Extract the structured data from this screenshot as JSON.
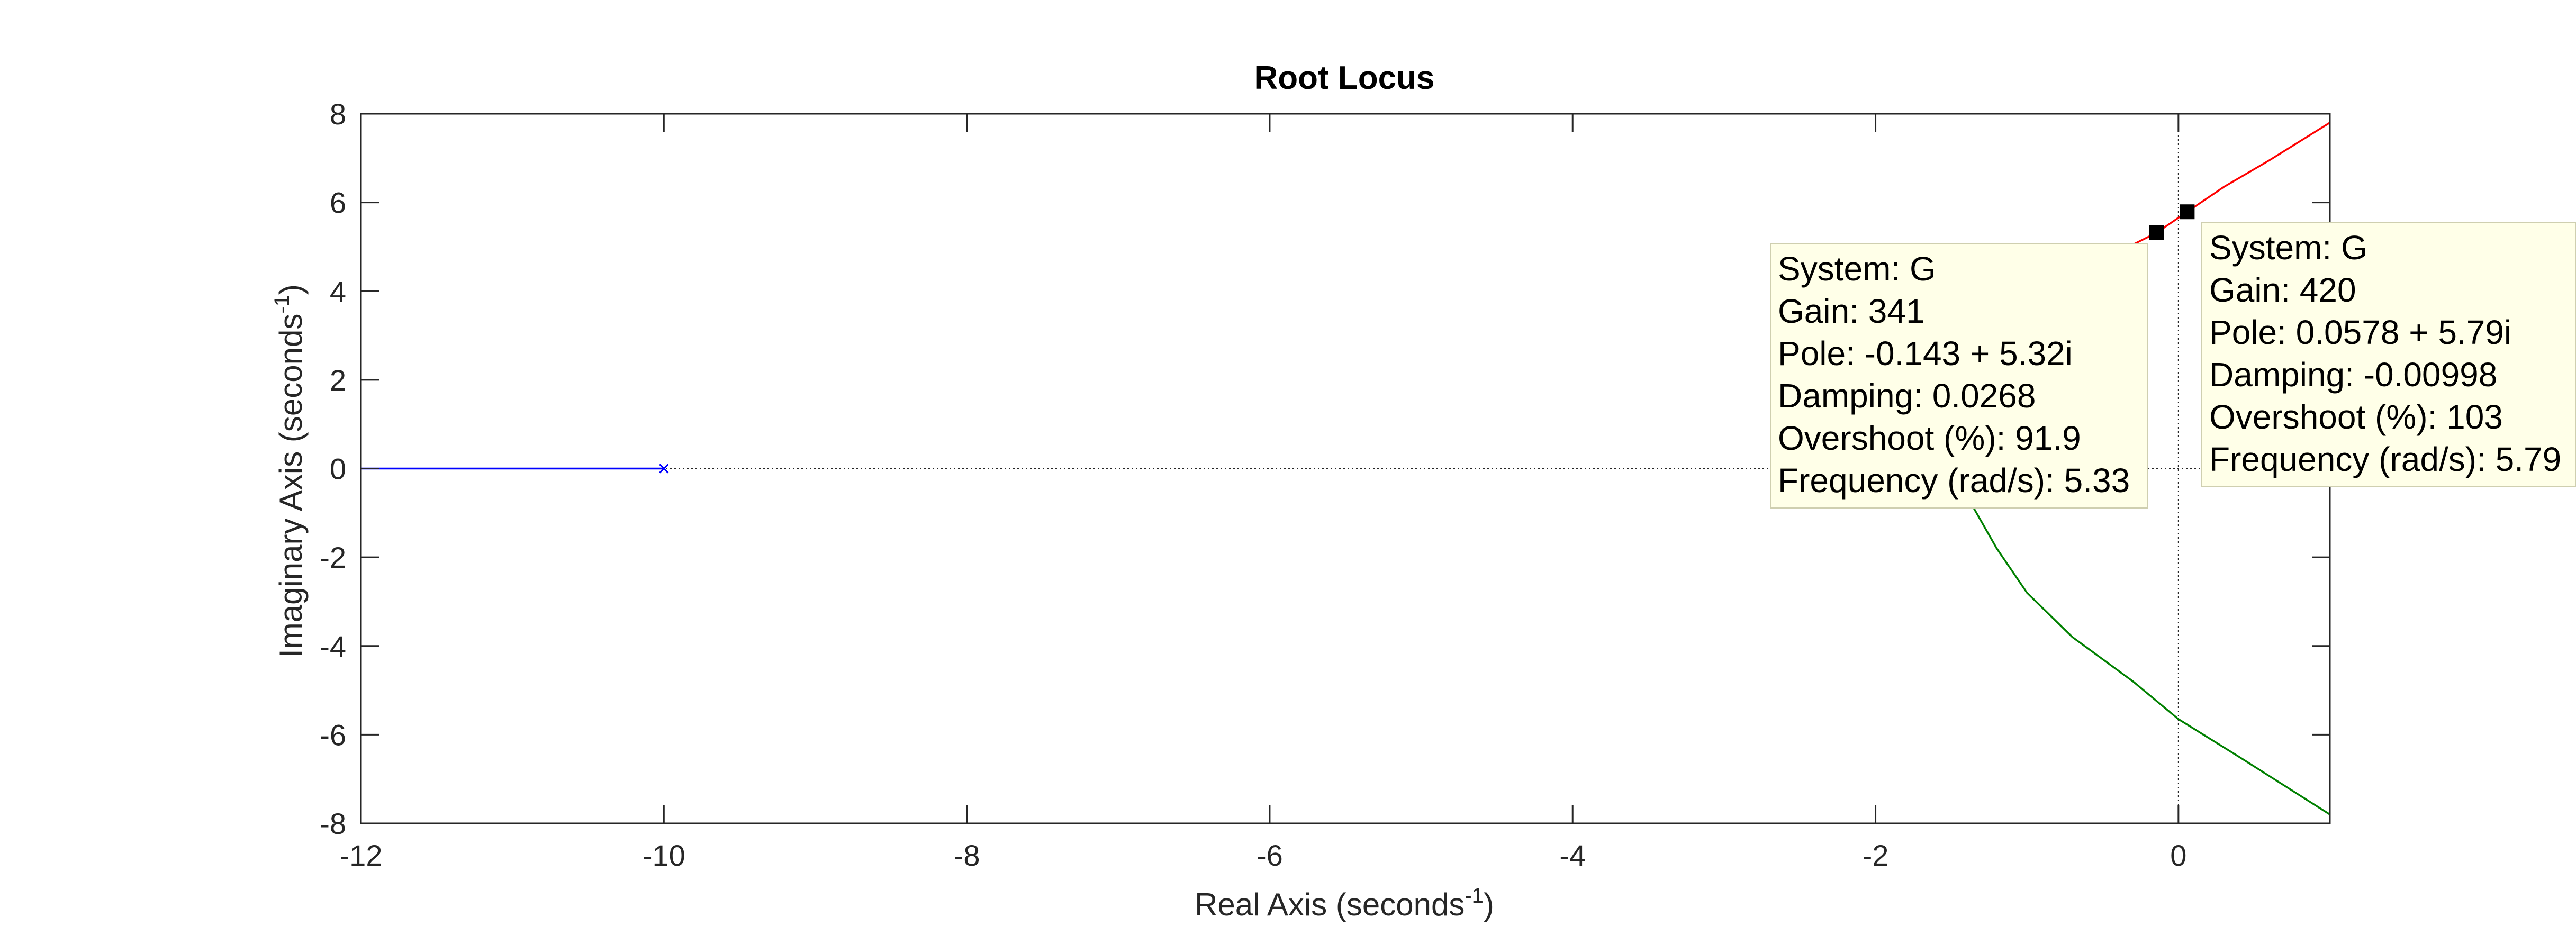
{
  "chart_data": {
    "type": "line",
    "title": "Root Locus",
    "xlabel": {
      "main": "Real Axis (seconds",
      "superscript": "-1",
      "close": ")"
    },
    "ylabel": {
      "main": "Imaginary Axis (seconds",
      "superscript": "-1",
      "close": ")"
    },
    "xlim": [
      -12,
      1
    ],
    "ylim": [
      -8,
      8
    ],
    "xticks": [
      -12,
      -10,
      -8,
      -6,
      -4,
      -2,
      0
    ],
    "yticks": [
      -8,
      -6,
      -4,
      -2,
      0,
      2,
      4,
      6,
      8
    ],
    "grid": false,
    "series": [
      {
        "color": "#0000ff",
        "points": [
          [
            -12,
            0
          ],
          [
            -10,
            0
          ]
        ]
      },
      {
        "color": "#ff0000",
        "points": [
          [
            -0.3,
            5.05
          ],
          [
            -0.143,
            5.32
          ],
          [
            0.0578,
            5.79
          ],
          [
            0.3,
            6.35
          ],
          [
            0.6,
            6.95
          ],
          [
            1.0,
            7.8
          ]
        ]
      },
      {
        "color": "#008000",
        "points": [
          [
            -1.45,
            -0.1
          ],
          [
            -1.35,
            -0.9
          ],
          [
            -1.2,
            -1.8
          ],
          [
            -1.0,
            -2.8
          ],
          [
            -0.7,
            -3.8
          ],
          [
            -0.3,
            -4.8
          ],
          [
            0.0,
            -5.65
          ],
          [
            0.4,
            -6.5
          ],
          [
            1.0,
            -7.8
          ]
        ]
      }
    ],
    "poles": [
      {
        "x": -10,
        "y": 0,
        "color": "#0000ff"
      }
    ],
    "datatips": [
      {
        "x": -0.143,
        "y": 5.32,
        "lines": [
          "System: G",
          "Gain: 341",
          "Pole: -0.143 + 5.32i",
          "Damping: 0.0268",
          "Overshoot (%): 91.9",
          "Frequency (rad/s): 5.33"
        ]
      },
      {
        "x": 0.0578,
        "y": 5.79,
        "lines": [
          "System: G",
          "Gain: 420",
          "Pole: 0.0578 + 5.79i",
          "Damping: -0.00998",
          "Overshoot (%): 103",
          "Frequency (rad/s): 5.79"
        ]
      }
    ],
    "colors": {
      "axis": "#262626",
      "tip_background": "#ffffe8",
      "tip_border": "#cfcfb0",
      "reference_line": "#262626"
    }
  }
}
